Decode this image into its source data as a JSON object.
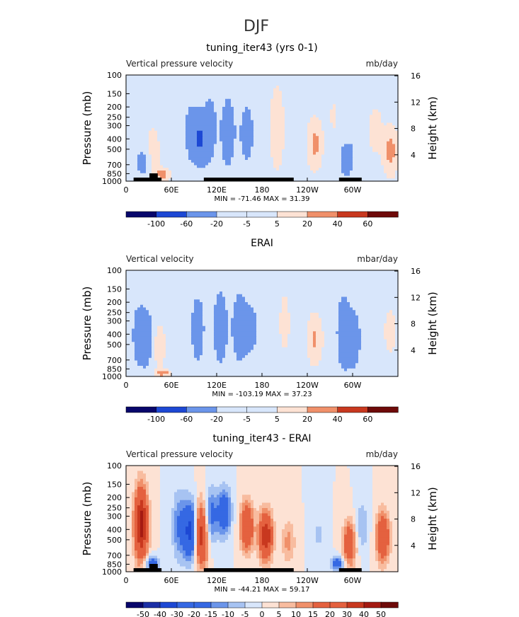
{
  "figure": {
    "season_title": "DJF",
    "panel_colors_note": "",
    "colors": {
      "blue_scale": [
        "#08066b",
        "#1b2fa6",
        "#1d48d4",
        "#3568e3",
        "#6b95ea",
        "#a7c3f2",
        "#d8e6fb"
      ],
      "red_scale": [
        "#fde2d4",
        "#f8bc9f",
        "#f0906a",
        "#e4613f",
        "#c8381f",
        "#a41a12",
        "#6e0a09"
      ],
      "land_bar": "#000000"
    }
  },
  "chart_data": [
    {
      "type": "heatmap",
      "title": "tuning_iter43 (yrs 0-1)",
      "left_label": "Vertical pressure velocity",
      "right_label": "mb/day",
      "ylabel": "Pressure (mb)",
      "ylabel_right": "Height (km)",
      "yticks": [
        "100",
        "150",
        "200",
        "250",
        "300",
        "400",
        "500",
        "700",
        "850",
        "1000"
      ],
      "ytick_values": [
        100,
        150,
        200,
        250,
        300,
        400,
        500,
        700,
        850,
        1000
      ],
      "ylim": [
        1000,
        100
      ],
      "yscale": "log",
      "yticks_right": [
        "16",
        "12",
        "8",
        "4"
      ],
      "ytick_right_values": [
        16,
        12,
        8,
        4
      ],
      "xticks": [
        "0",
        "60E",
        "120E",
        "180",
        "120W",
        "60W"
      ],
      "xtick_values": [
        0,
        60,
        120,
        180,
        240,
        300
      ],
      "xlim": [
        0,
        360
      ],
      "stats": "MIN = -71.46   MAX =  31.39",
      "colorbar_labels": [
        "-100",
        "-60",
        "-20",
        "-5",
        "5",
        "20",
        "40",
        "60"
      ],
      "colorbar_levels": [
        -100,
        -60,
        -20,
        -5,
        5,
        20,
        40,
        60
      ],
      "approx_min": -71.46,
      "approx_max": 31.39,
      "land_segments": [
        [
          10,
          47
        ],
        [
          103,
          222
        ],
        [
          282,
          312
        ]
      ],
      "plateaus": [
        [
          31,
          42
        ]
      ],
      "features": [
        {
          "lon": 22,
          "p_lo": 450,
          "p_hi": 1000,
          "value": -35
        },
        {
          "lon": 35,
          "p_lo": 300,
          "p_hi": 950,
          "value": 15
        },
        {
          "lon": 48,
          "p_lo": 750,
          "p_hi": 1000,
          "value": 30
        },
        {
          "lon": 85,
          "p_lo": 140,
          "p_hi": 850,
          "value": -30
        },
        {
          "lon": 98,
          "p_lo": 200,
          "p_hi": 800,
          "value": -60
        },
        {
          "lon": 112,
          "p_lo": 120,
          "p_hi": 850,
          "value": -35
        },
        {
          "lon": 135,
          "p_lo": 150,
          "p_hi": 800,
          "value": -55
        },
        {
          "lon": 160,
          "p_lo": 170,
          "p_hi": 750,
          "value": -45
        },
        {
          "lon": 200,
          "p_lo": 110,
          "p_hi": 900,
          "value": 15
        },
        {
          "lon": 250,
          "p_lo": 250,
          "p_hi": 800,
          "value": 25
        },
        {
          "lon": 275,
          "p_lo": 120,
          "p_hi": 500,
          "value": 6
        },
        {
          "lon": 292,
          "p_lo": 400,
          "p_hi": 1000,
          "value": -45
        },
        {
          "lon": 305,
          "p_lo": 150,
          "p_hi": 700,
          "value": -15
        },
        {
          "lon": 330,
          "p_lo": 180,
          "p_hi": 600,
          "value": 12
        },
        {
          "lon": 350,
          "p_lo": 300,
          "p_hi": 900,
          "value": 28
        }
      ]
    },
    {
      "type": "heatmap",
      "title": "ERAI",
      "left_label": "Vertical velocity",
      "right_label": "mbar/day",
      "ylabel": "Pressure (mb)",
      "ylabel_right": "Height (km)",
      "yticks": [
        "100",
        "150",
        "200",
        "250",
        "300",
        "400",
        "500",
        "700",
        "850",
        "1000"
      ],
      "ytick_values": [
        100,
        150,
        200,
        250,
        300,
        400,
        500,
        700,
        850,
        1000
      ],
      "ylim": [
        1000,
        100
      ],
      "yscale": "log",
      "yticks_right": [
        "16",
        "12",
        "8",
        "4"
      ],
      "ytick_right_values": [
        16,
        12,
        8,
        4
      ],
      "xticks": [
        "0",
        "60E",
        "120E",
        "180",
        "120W",
        "60W"
      ],
      "xtick_values": [
        0,
        60,
        120,
        180,
        240,
        300
      ],
      "xlim": [
        0,
        360
      ],
      "stats": "MIN = -103.19   MAX =  37.23",
      "colorbar_labels": [
        "-100",
        "-60",
        "-20",
        "-5",
        "5",
        "20",
        "40",
        "60"
      ],
      "colorbar_levels": [
        -100,
        -60,
        -20,
        -5,
        5,
        20,
        40,
        60
      ],
      "approx_min": -103.19,
      "approx_max": 37.23,
      "land_segments": [],
      "plateaus": [],
      "features": [
        {
          "lon": 16,
          "p_lo": 170,
          "p_hi": 950,
          "value": -35
        },
        {
          "lon": 28,
          "p_lo": 200,
          "p_hi": 1000,
          "value": -40
        },
        {
          "lon": 42,
          "p_lo": 300,
          "p_hi": 900,
          "value": 18
        },
        {
          "lon": 48,
          "p_lo": 850,
          "p_hi": 1000,
          "value": 35
        },
        {
          "lon": 95,
          "p_lo": 150,
          "p_hi": 850,
          "value": -45
        },
        {
          "lon": 125,
          "p_lo": 140,
          "p_hi": 850,
          "value": -55
        },
        {
          "lon": 150,
          "p_lo": 150,
          "p_hi": 800,
          "value": -55
        },
        {
          "lon": 165,
          "p_lo": 180,
          "p_hi": 700,
          "value": -40
        },
        {
          "lon": 210,
          "p_lo": 120,
          "p_hi": 800,
          "value": 8
        },
        {
          "lon": 250,
          "p_lo": 250,
          "p_hi": 800,
          "value": 22
        },
        {
          "lon": 288,
          "p_lo": 150,
          "p_hi": 1000,
          "value": -50
        },
        {
          "lon": 302,
          "p_lo": 200,
          "p_hi": 1000,
          "value": -40
        },
        {
          "lon": 322,
          "p_lo": 200,
          "p_hi": 900,
          "value": -12
        },
        {
          "lon": 350,
          "p_lo": 200,
          "p_hi": 700,
          "value": 10
        }
      ]
    },
    {
      "type": "heatmap",
      "title": "tuning_iter43 - ERAI",
      "left_label": "Vertical pressure velocity",
      "right_label": "mb/day",
      "ylabel": "Pressure (mb)",
      "ylabel_right": "Height (km)",
      "yticks": [
        "100",
        "150",
        "200",
        "250",
        "300",
        "400",
        "500",
        "700",
        "850",
        "1000"
      ],
      "ytick_values": [
        100,
        150,
        200,
        250,
        300,
        400,
        500,
        700,
        850,
        1000
      ],
      "ylim": [
        1000,
        100
      ],
      "yscale": "log",
      "yticks_right": [
        "16",
        "12",
        "8",
        "4"
      ],
      "ytick_right_values": [
        16,
        12,
        8,
        4
      ],
      "xticks": [
        "0",
        "60E",
        "120E",
        "180",
        "120W",
        "60W"
      ],
      "xtick_values": [
        0,
        60,
        120,
        180,
        240,
        300
      ],
      "xlim": [
        0,
        360
      ],
      "stats": "MIN = -44.21   MAX =  59.17",
      "colorbar_labels": [
        "-50",
        "-40",
        "-30",
        "-20",
        "-15",
        "-10",
        "-5",
        "0",
        "5",
        "10",
        "15",
        "20",
        "30",
        "40",
        "50"
      ],
      "colorbar_levels": [
        -50,
        -40,
        -30,
        -20,
        -15,
        -10,
        -5,
        0,
        5,
        10,
        15,
        20,
        30,
        40,
        50
      ],
      "approx_min": -44.21,
      "approx_max": 59.17,
      "land_segments": [
        [
          10,
          47
        ],
        [
          103,
          222
        ],
        [
          282,
          312
        ]
      ],
      "plateaus": [
        [
          31,
          42
        ]
      ],
      "features": [
        {
          "lon": 20,
          "p_lo": 140,
          "p_hi": 900,
          "value": 45
        },
        {
          "lon": 34,
          "p_lo": 700,
          "p_hi": 1000,
          "value": -25
        },
        {
          "lon": 70,
          "p_lo": 150,
          "p_hi": 900,
          "value": -15
        },
        {
          "lon": 85,
          "p_lo": 200,
          "p_hi": 850,
          "value": -35
        },
        {
          "lon": 100,
          "p_lo": 200,
          "p_hi": 1000,
          "value": 38
        },
        {
          "lon": 112,
          "p_lo": 150,
          "p_hi": 600,
          "value": -20
        },
        {
          "lon": 130,
          "p_lo": 150,
          "p_hi": 500,
          "value": -25
        },
        {
          "lon": 160,
          "p_lo": 200,
          "p_hi": 700,
          "value": 30
        },
        {
          "lon": 185,
          "p_lo": 250,
          "p_hi": 850,
          "value": 40
        },
        {
          "lon": 215,
          "p_lo": 300,
          "p_hi": 900,
          "value": 12
        },
        {
          "lon": 255,
          "p_lo": 250,
          "p_hi": 800,
          "value": -6
        },
        {
          "lon": 280,
          "p_lo": 700,
          "p_hi": 1000,
          "value": -22
        },
        {
          "lon": 296,
          "p_lo": 300,
          "p_hi": 1000,
          "value": 25
        },
        {
          "lon": 312,
          "p_lo": 200,
          "p_hi": 700,
          "value": -10
        },
        {
          "lon": 340,
          "p_lo": 250,
          "p_hi": 900,
          "value": 30
        }
      ]
    }
  ]
}
